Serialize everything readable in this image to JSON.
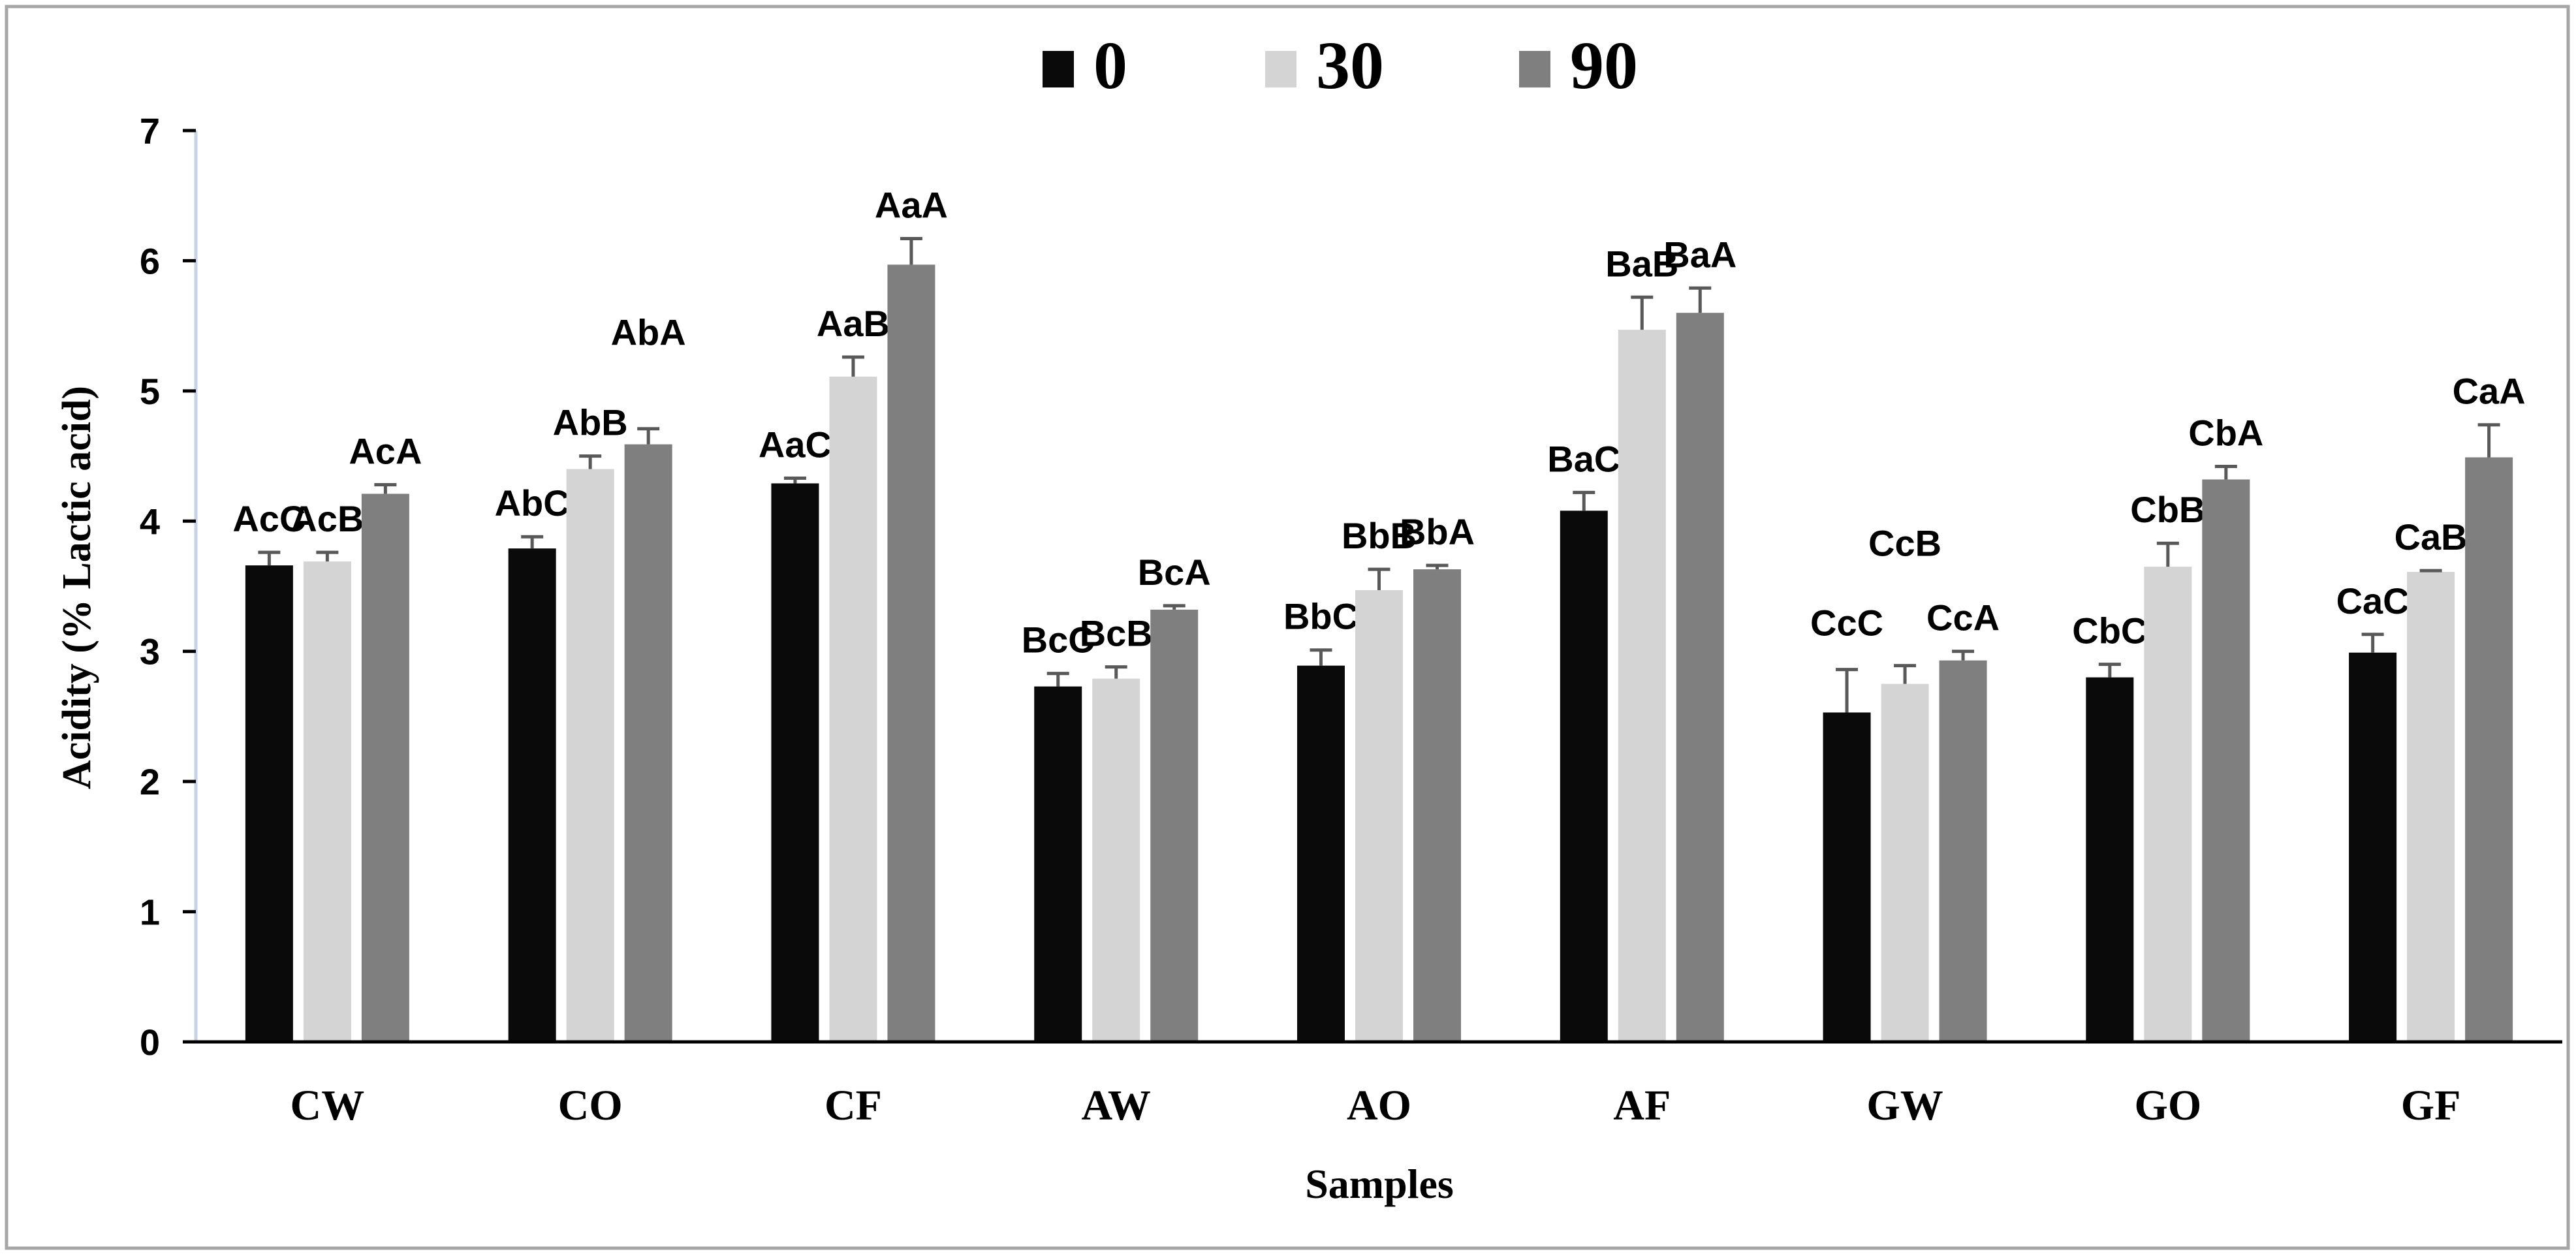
{
  "chart_data": {
    "type": "bar",
    "title": "",
    "xlabel": "Samples",
    "ylabel": "Acidity (% Lactic acid)",
    "ylim": [
      0,
      7
    ],
    "yticks": [
      "0",
      "1",
      "2",
      "3",
      "4",
      "5",
      "6",
      "7"
    ],
    "categories": [
      "CW",
      "CO",
      "CF",
      "AW",
      "AO",
      "AF",
      "GW",
      "GO",
      "GF"
    ],
    "legend_position": "top-center",
    "grid": false,
    "colors": {
      "s0": "#0a0a0a",
      "s30": "#d4d4d4",
      "s90": "#7f7f7f",
      "axis": "#000000",
      "frame": "#a6a6a6"
    },
    "series": [
      {
        "name": "0",
        "values": [
          3.66,
          3.79,
          4.29,
          2.73,
          2.89,
          4.08,
          2.53,
          2.8,
          2.99
        ],
        "errors": [
          0.1,
          0.09,
          0.04,
          0.1,
          0.12,
          0.14,
          0.33,
          0.1,
          0.14
        ],
        "labels": [
          "AcC",
          "AbC",
          "AaC",
          "BcC",
          "BbC",
          "BaC",
          "CcC",
          "CbC",
          "CaC"
        ]
      },
      {
        "name": "30",
        "values": [
          3.69,
          4.4,
          5.11,
          2.79,
          3.47,
          5.47,
          2.75,
          3.65,
          3.61
        ],
        "errors": [
          0.07,
          0.1,
          0.15,
          0.09,
          0.16,
          0.25,
          0.14,
          0.18,
          0.01
        ],
        "labels": [
          "AcB",
          "AbB",
          "AaB",
          "BcB",
          "BbB",
          "BaB",
          "CcB",
          "CbB",
          "CaB"
        ]
      },
      {
        "name": "90",
        "values": [
          4.21,
          4.59,
          5.97,
          3.32,
          3.63,
          5.6,
          2.93,
          4.32,
          4.49
        ],
        "errors": [
          0.07,
          0.12,
          0.2,
          0.03,
          0.03,
          0.19,
          0.07,
          0.1,
          0.25
        ],
        "labels": [
          "AcA",
          "AbA",
          "AaA",
          "BcA",
          "BbA",
          "BaA",
          "CcA",
          "CbA",
          "CaA"
        ]
      }
    ]
  }
}
